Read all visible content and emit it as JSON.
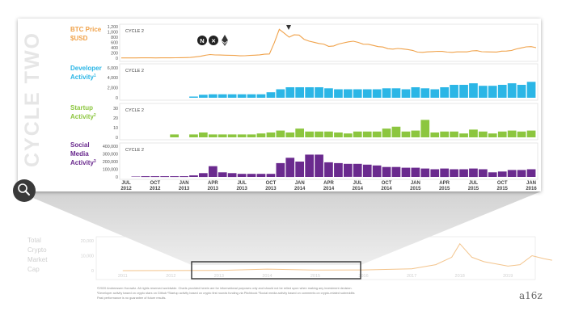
{
  "title": "CYCLE TWO",
  "colors": {
    "btc": "#f0a24a",
    "developer": "#2bb6e6",
    "startup": "#8cc63f",
    "social": "#6a2a8e",
    "muted": "#c8c8c8",
    "text": "#555555"
  },
  "chart_data": [
    {
      "type": "line",
      "name_label": [
        "BTC Price",
        "$USD"
      ],
      "cycle_label": "CYCLE 2",
      "yticks": [
        "1,200",
        "1,000",
        "800",
        "600",
        "400",
        "200",
        "0"
      ],
      "ylim": [
        0,
        1200
      ],
      "x": [
        "Jul 2012",
        "Aug 2012",
        "Sep 2012",
        "Oct 2012",
        "Nov 2012",
        "Dec 2012",
        "Jan 2013",
        "Feb 2013",
        "Mar 2013",
        "Apr 2013",
        "May 2013",
        "Jun 2013",
        "Jul 2013",
        "Aug 2013",
        "Sep 2013",
        "Oct 2013",
        "Nov 2013",
        "Dec 2013",
        "Jan 2014",
        "Feb 2014",
        "Mar 2014",
        "Apr 2014",
        "May 2014",
        "Jun 2014",
        "Jul 2014",
        "Aug 2014",
        "Sep 2014",
        "Oct 2014",
        "Nov 2014",
        "Dec 2014",
        "Jan 2015",
        "Feb 2015",
        "Mar 2015",
        "Apr 2015",
        "May 2015",
        "Jun 2015",
        "Jul 2015",
        "Aug 2015",
        "Sep 2015",
        "Oct 2015",
        "Nov 2015",
        "Dec 2015",
        "Jan 2016"
      ],
      "values": [
        8,
        10,
        11,
        11,
        11,
        13,
        17,
        27,
        70,
        140,
        120,
        110,
        90,
        105,
        125,
        160,
        1100,
        800,
        880,
        650,
        560,
        450,
        540,
        620,
        600,
        530,
        440,
        360,
        370,
        330,
        230,
        240,
        260,
        230,
        240,
        240,
        285,
        240,
        235,
        270,
        350,
        430,
        400
      ],
      "icons": [
        "namecoin-icon",
        "xrp-icon",
        "ethereum-icon"
      ]
    },
    {
      "type": "bar",
      "name_label": [
        "Developer",
        "Activity"
      ],
      "footnote_mark": "1",
      "cycle_label": "CYCLE 2",
      "yticks": [
        "6,000",
        "4,000",
        "2,000",
        "0"
      ],
      "ylim": [
        0,
        6000
      ],
      "values": [
        0,
        0,
        0,
        0,
        0,
        0,
        0,
        250,
        600,
        700,
        700,
        700,
        700,
        700,
        700,
        1100,
        1700,
        2100,
        2100,
        2100,
        2100,
        1900,
        1700,
        1700,
        1700,
        1700,
        1700,
        1900,
        1900,
        1700,
        2100,
        1900,
        1700,
        2100,
        2600,
        2600,
        2900,
        2400,
        2400,
        2600,
        2900,
        2600,
        3200
      ]
    },
    {
      "type": "bar",
      "name_label": [
        "Startup",
        "Activity"
      ],
      "footnote_mark": "2",
      "cycle_label": "CYCLE 2",
      "yticks": [
        "30",
        "20",
        "10",
        "0"
      ],
      "ylim": [
        0,
        30
      ],
      "values": [
        0,
        0,
        0,
        0,
        0,
        3,
        0,
        3,
        5,
        3,
        3,
        3,
        3,
        3,
        4,
        5,
        7,
        5,
        9,
        6,
        6,
        6,
        5,
        4,
        6,
        6,
        6,
        9,
        11,
        6,
        7,
        18,
        5,
        6,
        6,
        4,
        8,
        6,
        4,
        6,
        7,
        6,
        7
      ]
    },
    {
      "type": "bar",
      "name_label": [
        "Social",
        "Media",
        "Activity"
      ],
      "footnote_mark": "3",
      "cycle_label": "CYCLE 2",
      "yticks": [
        "400,000",
        "300,000",
        "200,000",
        "100,000",
        "0"
      ],
      "ylim": [
        0,
        400000
      ],
      "values": [
        0,
        5000,
        10000,
        10000,
        10000,
        10000,
        10000,
        20000,
        50000,
        140000,
        60000,
        50000,
        40000,
        40000,
        40000,
        40000,
        180000,
        250000,
        200000,
        290000,
        290000,
        190000,
        180000,
        170000,
        170000,
        160000,
        150000,
        130000,
        130000,
        120000,
        120000,
        110000,
        100000,
        110000,
        100000,
        100000,
        110000,
        100000,
        60000,
        70000,
        90000,
        90000,
        100000
      ]
    },
    {
      "type": "area",
      "name_label": [
        "Total",
        "Crypto",
        "Market",
        "Cap"
      ],
      "yticks": [
        "20,000",
        "10,000",
        "0"
      ],
      "ylim": [
        0,
        20000
      ],
      "xticks": [
        "2011",
        "2012",
        "2013",
        "2014",
        "2015",
        "2016",
        "2017",
        "2018",
        "2019"
      ],
      "x": [
        "Jan 2011",
        "Jan 2012",
        "Jan 2013",
        "Jan 2014",
        "Jan 2015",
        "Jan 2016",
        "Jan 2017",
        "Jul 2017",
        "Nov 2017",
        "Jan 2018",
        "Apr 2018",
        "Jul 2018",
        "Jan 2019",
        "Apr 2019",
        "Jul 2019",
        "Oct 2019",
        "Dec 2019"
      ],
      "values": [
        20,
        50,
        150,
        1000,
        400,
        500,
        1200,
        4000,
        9000,
        18000,
        9000,
        6000,
        3000,
        4000,
        10000,
        8000,
        7000
      ]
    }
  ],
  "x_axis": [
    [
      "JUL",
      "2012"
    ],
    [
      "OCT",
      "2012"
    ],
    [
      "JAN",
      "2013"
    ],
    [
      "APR",
      "2013"
    ],
    [
      "JUL",
      "2013"
    ],
    [
      "OCT",
      "2013"
    ],
    [
      "JAN",
      "2014"
    ],
    [
      "APR",
      "2014"
    ],
    [
      "JUL",
      "2014"
    ],
    [
      "OCT",
      "2014"
    ],
    [
      "JAN",
      "2015"
    ],
    [
      "APR",
      "2015"
    ],
    [
      "JUL",
      "2015"
    ],
    [
      "OCT",
      "2015"
    ],
    [
      "JAN",
      "2016"
    ]
  ],
  "footer": {
    "lines": [
      "©2020 Andreessen Horowitz. All rights reserved worldwide.     Charts provided herein are for informational purposes only and should not be relied upon when making any investment decision.",
      "¹Developer activity based on crypto stars on Github    ²Startup activity based on crypto first rounds funding via Pitchbook    ³Social media activity based on comments on crypto-related subreddits",
      "Past performance is no guarantee of future results."
    ],
    "logo": "a16z"
  }
}
